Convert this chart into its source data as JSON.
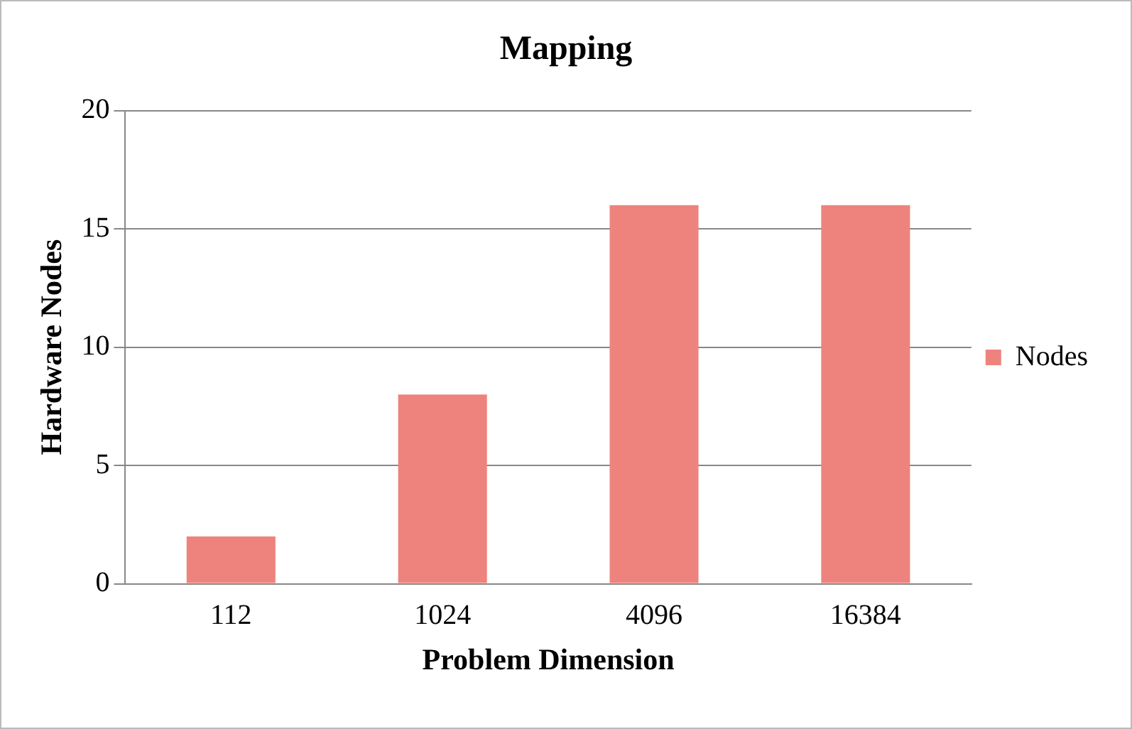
{
  "chart_data": {
    "type": "bar",
    "title": "Mapping",
    "xlabel": "Problem Dimension",
    "ylabel": "Hardware Nodes",
    "categories": [
      "112",
      "1024",
      "4096",
      "16384"
    ],
    "series": [
      {
        "name": "Nodes",
        "color": "#ee837d",
        "values": [
          2,
          8,
          16,
          16
        ]
      }
    ],
    "ylim": [
      0,
      20
    ],
    "yticks": [
      0,
      5,
      10,
      15,
      20
    ],
    "grid": "y",
    "legend": "right"
  }
}
